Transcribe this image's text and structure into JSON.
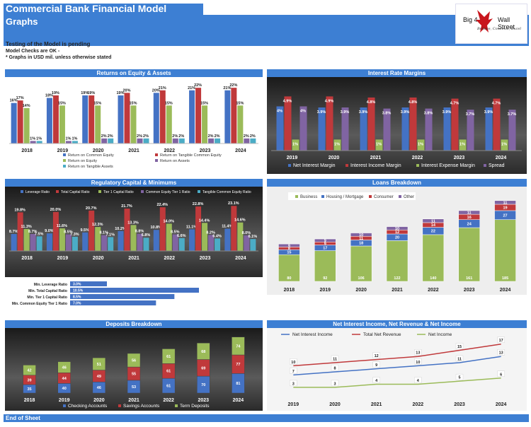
{
  "header": {
    "title": "Commercial Bank Financial Model",
    "subtitle": "Graphs",
    "status_line": "Testing of the Model is pending",
    "checks_line": "Model Checks are OK -",
    "units_line": "* Graphs in USD mil. unless otherwise stated"
  },
  "logo": {
    "left": "Big 4",
    "right": "Wall Street",
    "tagline": "Believe, Conceive, Excel",
    "icon": "eagle-icon"
  },
  "colors": {
    "accent": "#3d7fd3",
    "blue": "#4472c4",
    "red": "#c0393b",
    "green": "#9bbb59",
    "purple": "#8064a2",
    "cyan": "#4bacc6"
  },
  "footer": {
    "label": "End of Sheet"
  },
  "chart_data": [
    {
      "type": "bar",
      "title": "Returns on Equity & Assets",
      "categories": [
        "2018",
        "2019",
        "2020",
        "2021",
        "2022",
        "2023",
        "2024"
      ],
      "series": [
        {
          "name": "Return on Common Equity",
          "values": [
            16,
            18,
            19,
            19,
            20,
            21,
            21
          ]
        },
        {
          "name": "Return on Tangible Common Equity",
          "values": [
            17,
            19,
            19,
            20,
            21,
            22,
            22
          ]
        },
        {
          "name": "Return on Equity",
          "values": [
            14,
            15,
            15,
            15,
            15,
            15,
            15
          ]
        },
        {
          "name": "Return on Assets",
          "values": [
            1,
            1,
            2,
            2,
            2,
            2,
            2
          ]
        },
        {
          "name": "Return on Tangible Assets",
          "values": [
            1,
            1,
            2,
            2,
            2,
            2,
            2
          ]
        }
      ],
      "ylim": [
        0,
        24
      ],
      "value_suffix": "%"
    },
    {
      "type": "bar",
      "title": "Interest Rate Margins",
      "categories": [
        "2019",
        "2020",
        "2021",
        "2022",
        "2023",
        "2024"
      ],
      "series": [
        {
          "name": "Net Interest Margin",
          "values": [
            4.0,
            3.9,
            3.9,
            3.9,
            3.9,
            3.9
          ]
        },
        {
          "name": "Interest Income Margin",
          "values": [
            4.9,
            4.9,
            4.8,
            4.8,
            4.7,
            4.7
          ]
        },
        {
          "name": "Interest Expense Margin",
          "values": [
            1.0,
            1.0,
            1.0,
            1.0,
            1.0,
            1.0
          ]
        },
        {
          "name": "Spread",
          "values": [
            4.0,
            3.9,
            3.8,
            3.8,
            3.7,
            3.7
          ]
        }
      ],
      "ylim": [
        0,
        5.5
      ],
      "value_suffix": "%"
    },
    {
      "type": "bar",
      "title": "Regulatory Capital & Minimums",
      "categories": [
        "2018",
        "2019",
        "2020",
        "2021",
        "2022",
        "2023",
        "2024"
      ],
      "series": [
        {
          "name": "Leverage Ratio",
          "values": [
            8.7,
            9.0,
            9.5,
            10.2,
            10.8,
            11.1,
            11.4
          ]
        },
        {
          "name": "Total Capital Ratio",
          "values": [
            19.8,
            20.0,
            20.7,
            21.7,
            22.4,
            22.8,
            23.1
          ]
        },
        {
          "name": "Tier 1 Capital Ratio",
          "values": [
            11.3,
            11.6,
            12.3,
            13.3,
            14.0,
            14.4,
            14.6
          ]
        },
        {
          "name": "Common Equity Tier 1 Ratio",
          "values": [
            8.7,
            8.5,
            8.1,
            8.8,
            8.5,
            8.2,
            8.0
          ]
        },
        {
          "name": "Tangible Common Equity Ratio",
          "values": [
            7.5,
            7.3,
            7.1,
            6.8,
            6.6,
            6.4,
            6.1
          ]
        }
      ],
      "ylim": [
        0,
        25
      ],
      "value_suffix": "%",
      "minimums": [
        {
          "label": "Min. Leverage Ratio",
          "value": 3.0,
          "text": "3.0%"
        },
        {
          "label": "Min. Total Capital Ratio",
          "value": 10.5,
          "text": "10.5%"
        },
        {
          "label": "Min. Tier 1 Capital Ratio",
          "value": 8.5,
          "text": "8.5%"
        },
        {
          "label": "Min. Common Equity Tier 1 Ratio",
          "value": 7.0,
          "text": "7.0%"
        }
      ],
      "minimums_xlim": [
        0,
        15
      ]
    },
    {
      "type": "bar",
      "stacked": true,
      "title": "Loans Breakdown",
      "categories": [
        "2018",
        "2019",
        "2020",
        "2021",
        "2022",
        "2023",
        "2024"
      ],
      "series": [
        {
          "name": "Business",
          "values": [
            80,
            92,
            106,
            122,
            140,
            161,
            185
          ]
        },
        {
          "name": "Housing / Mortgage",
          "values": [
            15,
            17,
            18,
            20,
            22,
            24,
            27
          ]
        },
        {
          "name": "Consumer",
          "values": [
            8,
            9,
            11,
            12,
            14,
            16,
            19
          ]
        },
        {
          "name": "Other",
          "values": [
            9,
            9,
            10,
            10,
            11,
            11,
            11
          ]
        }
      ],
      "ylim": [
        0,
        250
      ]
    },
    {
      "type": "bar",
      "stacked": true,
      "title": "Deposits Breakdown",
      "categories": [
        "2018",
        "2019",
        "2020",
        "2021",
        "2022",
        "2023",
        "2024"
      ],
      "series": [
        {
          "name": "Checking Accounts",
          "values": [
            35,
            40,
            46,
            53,
            61,
            70,
            81
          ]
        },
        {
          "name": "Savings Accounts",
          "values": [
            39,
            44,
            49,
            55,
            61,
            69,
            77
          ]
        },
        {
          "name": "Term Deposits",
          "values": [
            42,
            46,
            51,
            56,
            61,
            68,
            74
          ]
        }
      ],
      "ylim": [
        0,
        240
      ]
    },
    {
      "type": "line",
      "title": "Net Interest Income, Net Revenue & Net Income",
      "categories": [
        "2019",
        "2020",
        "2021",
        "2022",
        "2023",
        "2024"
      ],
      "series": [
        {
          "name": "Net Interest Income",
          "values": [
            7,
            8,
            9,
            10,
            11,
            13
          ]
        },
        {
          "name": "Total Net Revenue",
          "values": [
            10,
            11,
            12,
            13,
            15,
            17
          ]
        },
        {
          "name": "Net Income",
          "values": [
            3,
            3,
            4,
            4,
            5,
            6
          ]
        }
      ],
      "ylim": [
        0,
        19
      ]
    }
  ]
}
